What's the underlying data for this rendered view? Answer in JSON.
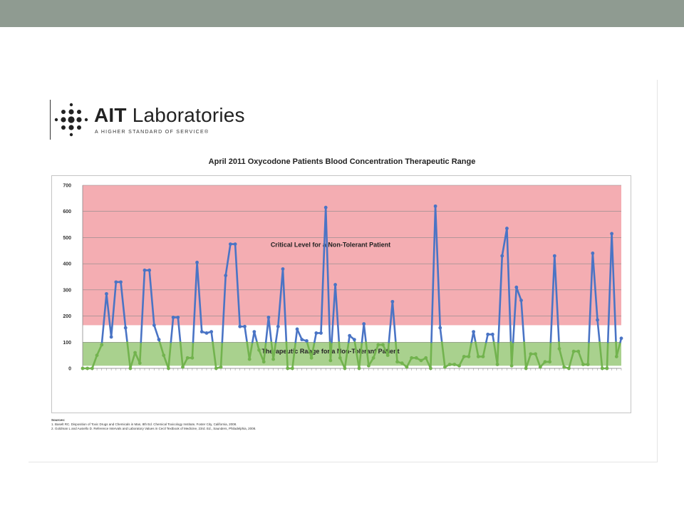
{
  "logo": {
    "brand_bold": "AIT",
    "brand_rest": " Laboratories",
    "tagline": "A HIGHER STANDARD OF SERVICE®"
  },
  "chart_data": {
    "type": "line",
    "title": "April 2011 Oxycodone Patients Blood Concentration Therapeutic Range",
    "xlabel": "",
    "ylabel": "",
    "ylim": [
      0,
      700
    ],
    "yticks": [
      0,
      100,
      200,
      300,
      400,
      500,
      600,
      700
    ],
    "grid": true,
    "bands": [
      {
        "label": "Critical Level for a Non-Tolerant Patient",
        "from": 165,
        "to": 700,
        "color": "#f4adb2"
      },
      {
        "label": "Therapeutic Range for a Non-Tolerant Patient",
        "from": 10,
        "to": 100,
        "color": "#a9d18e"
      }
    ],
    "series_colors": {
      "above_range": "#4a74c5",
      "in_range": "#72b34e"
    },
    "values": [
      0,
      0,
      0,
      50,
      90,
      285,
      120,
      330,
      330,
      155,
      0,
      60,
      20,
      375,
      375,
      165,
      110,
      50,
      0,
      195,
      195,
      5,
      40,
      40,
      405,
      140,
      135,
      140,
      0,
      5,
      355,
      475,
      475,
      160,
      160,
      35,
      140,
      70,
      25,
      195,
      35,
      160,
      380,
      0,
      0,
      150,
      110,
      105,
      40,
      135,
      135,
      615,
      30,
      320,
      40,
      0,
      125,
      110,
      0,
      170,
      10,
      40,
      90,
      90,
      50,
      255,
      25,
      20,
      5,
      40,
      40,
      30,
      40,
      0,
      620,
      155,
      5,
      15,
      15,
      10,
      45,
      45,
      140,
      45,
      45,
      130,
      130,
      15,
      430,
      535,
      10,
      310,
      260,
      0,
      55,
      55,
      5,
      25,
      25,
      430,
      75,
      5,
      0,
      65,
      65,
      15,
      15,
      440,
      185,
      0,
      0,
      515,
      45,
      115
    ]
  },
  "sources": {
    "label": "Sources:",
    "line1": "1. Baselt RC. Disposition of Toxic Drugs and Chemicals in Man, 8th Ed. Chemical Toxicology Institute, Foster City, California, 2008.",
    "line2": "2. Goldman L and Ausiello D. Reference Intervals and Laboratory Values in Cecil Textbook of Medicine, 23rd. Ed., Saunders, Philadelphia, 2008."
  }
}
